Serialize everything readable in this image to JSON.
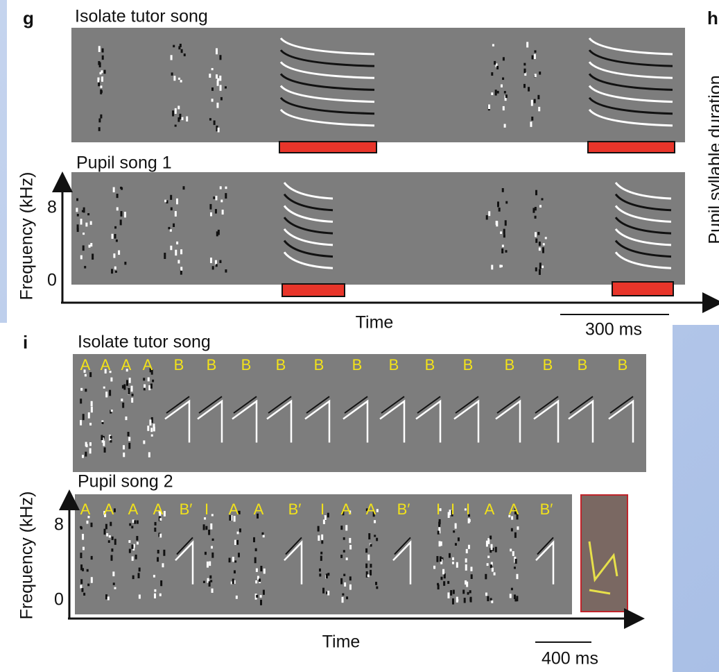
{
  "panel_g": {
    "label": "g",
    "tutor_title": "Isolate tutor song",
    "pupil_title": "Pupil song 1",
    "y_axis_label": "Frequency (kHz)",
    "y_tick_top": "8",
    "y_tick_bottom": "0",
    "x_axis_label": "Time",
    "scale_bar": "300 ms"
  },
  "panel_h": {
    "label": "h",
    "y_axis_label": "Pupil syllable duration"
  },
  "panel_i": {
    "label": "i",
    "tutor_title": "Isolate tutor song",
    "pupil_title": "Pupil song 2",
    "y_axis_label": "Frequency (kHz)",
    "y_tick_top": "8",
    "y_tick_bottom": "0",
    "x_axis_label": "Time",
    "scale_bar": "400 ms",
    "tutor_syllables": [
      "A",
      "A",
      "A",
      "A",
      "B",
      "B",
      "B",
      "B",
      "B",
      "B",
      "B",
      "B",
      "B",
      "B",
      "B",
      "B",
      "B"
    ],
    "pupil_syllables": [
      "A",
      "A",
      "A",
      "A",
      "B′",
      "I",
      "A",
      "A",
      "B′",
      "I",
      "A",
      "A",
      "B′",
      "I",
      "I",
      "I",
      "A",
      "A",
      "B′"
    ]
  }
}
